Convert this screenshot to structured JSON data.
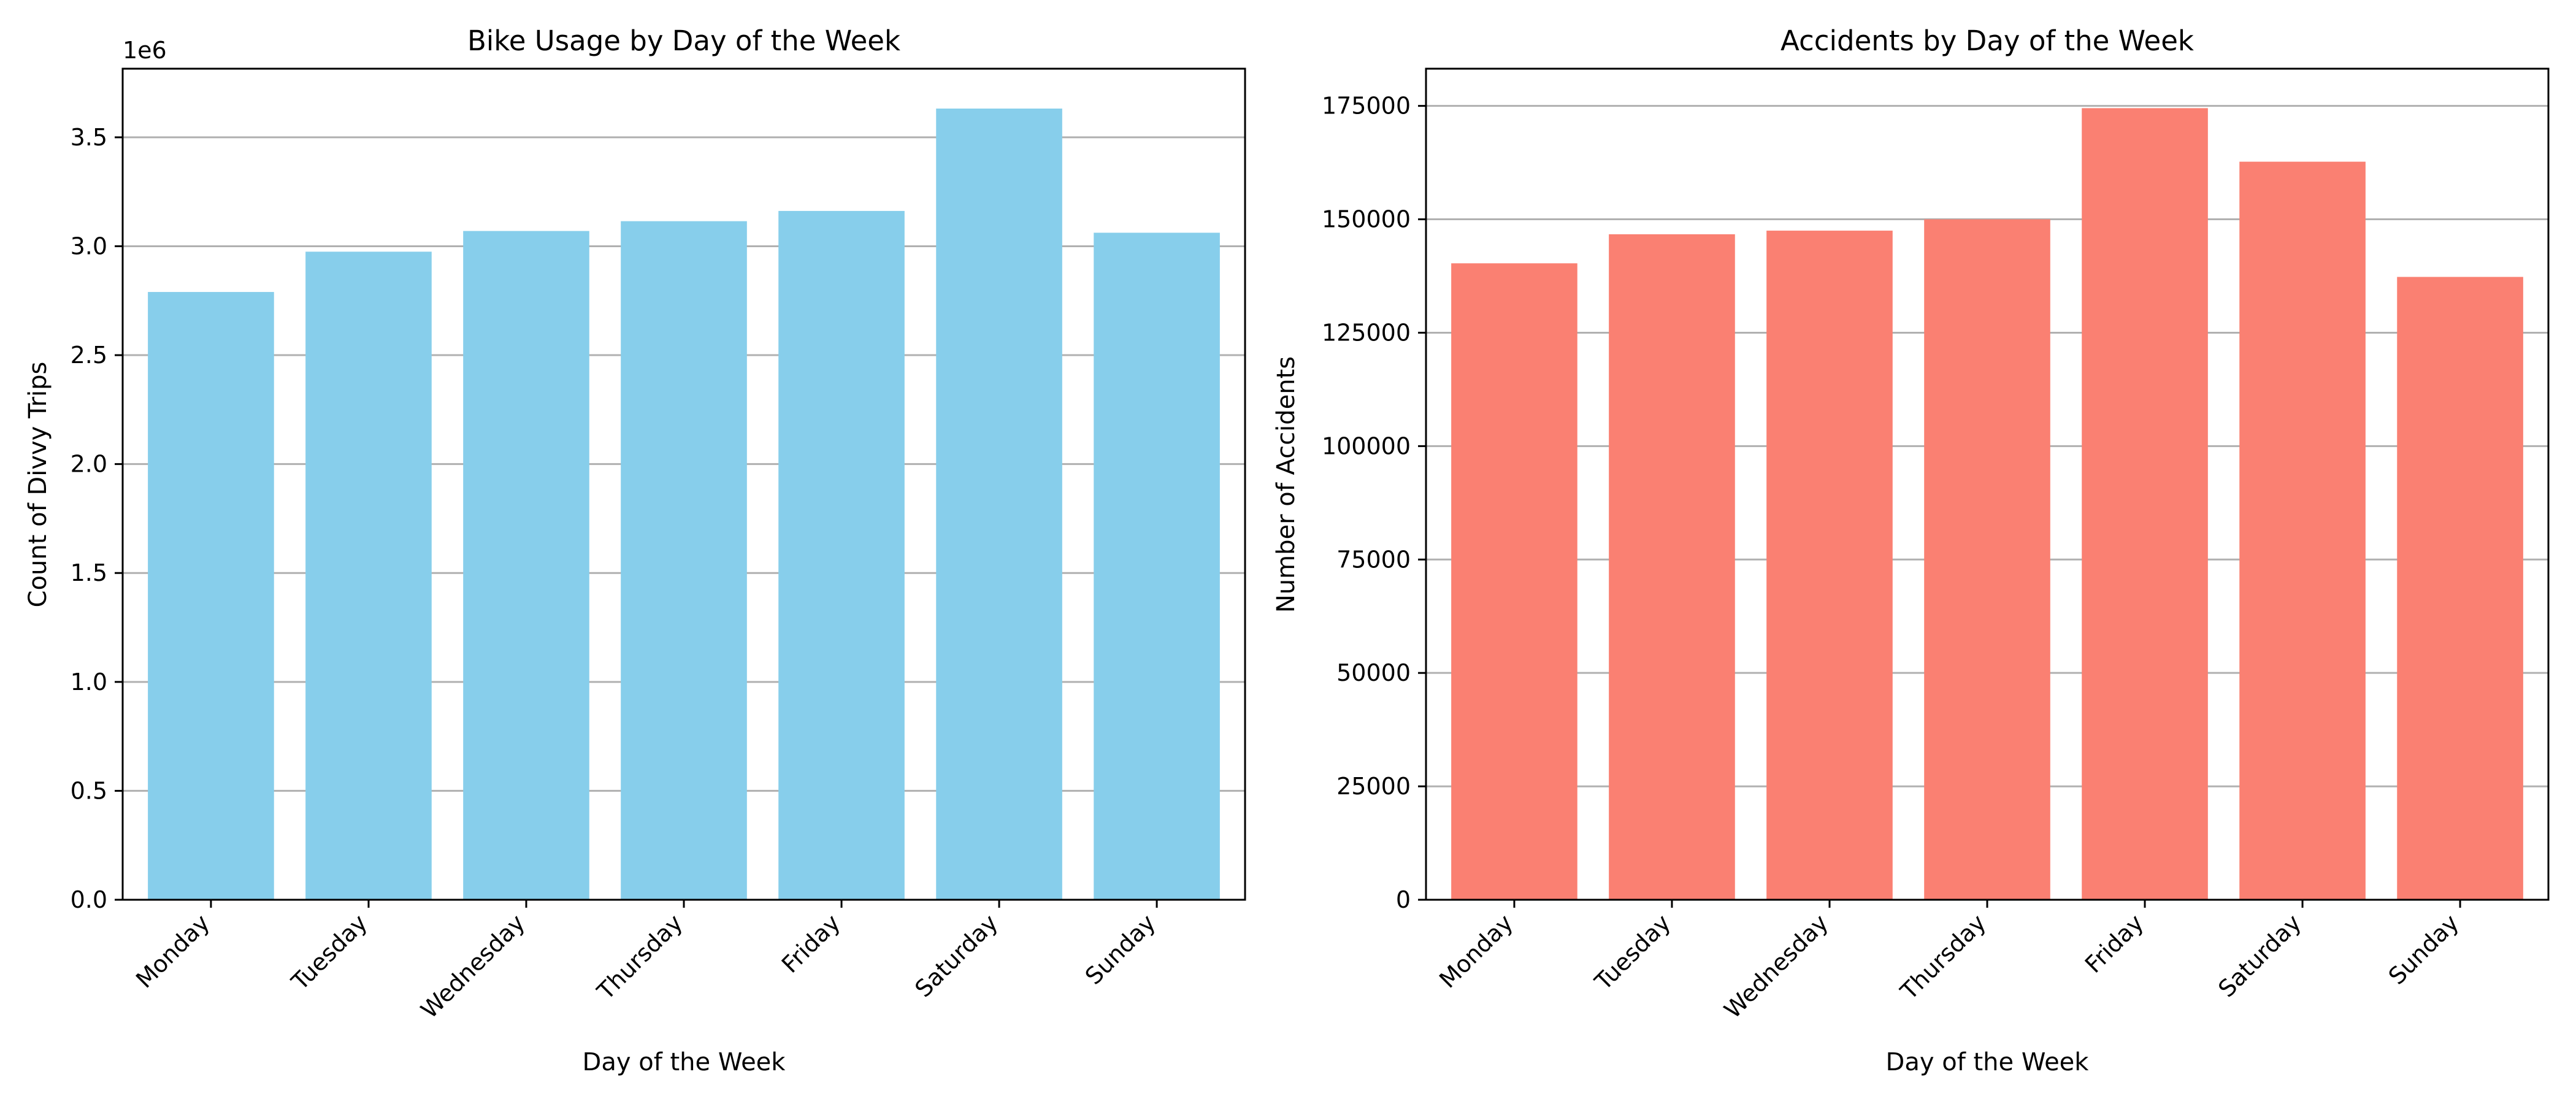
{
  "chart_data": [
    {
      "type": "bar",
      "title": "Bike Usage by Day of the Week",
      "xlabel": "Day of the Week",
      "ylabel": "Count of Divvy Trips",
      "y_offset_label": "1e6",
      "categories": [
        "Monday",
        "Tuesday",
        "Wednesday",
        "Thursday",
        "Friday",
        "Saturday",
        "Sunday"
      ],
      "values": [
        2790000,
        2975000,
        3070000,
        3115000,
        3162000,
        3632000,
        3062000
      ],
      "ylim": [
        0,
        3815000
      ],
      "yticks": [
        0,
        500000,
        1000000,
        1500000,
        2000000,
        2500000,
        3000000,
        3500000
      ],
      "ytick_labels": [
        "0.0",
        "0.5",
        "1.0",
        "1.5",
        "2.0",
        "2.5",
        "3.0",
        "3.5"
      ],
      "grid": "y",
      "color": "#87ceeb"
    },
    {
      "type": "bar",
      "title": "Accidents by Day of the Week",
      "xlabel": "Day of the Week",
      "ylabel": "Number of Accidents",
      "categories": [
        "Monday",
        "Tuesday",
        "Wednesday",
        "Thursday",
        "Friday",
        "Saturday",
        "Sunday"
      ],
      "values": [
        140300,
        146700,
        147500,
        150000,
        174500,
        162700,
        137300
      ],
      "ylim": [
        0,
        183200
      ],
      "yticks": [
        0,
        25000,
        50000,
        75000,
        100000,
        125000,
        150000,
        175000
      ],
      "ytick_labels": [
        "0",
        "25000",
        "50000",
        "75000",
        "100000",
        "125000",
        "150000",
        "175000"
      ],
      "grid": "y",
      "color": "#fa8072"
    }
  ]
}
